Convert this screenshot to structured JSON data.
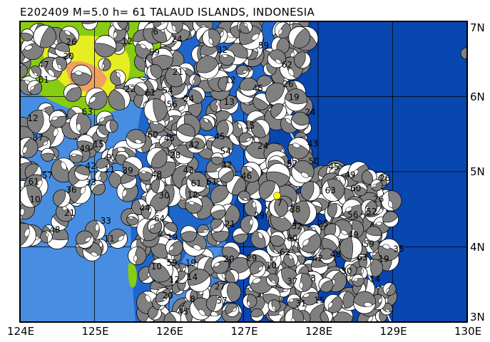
{
  "title": "E202409 M=5.0 h= 61 TALAUD ISLANDS, INDONESIA",
  "map": {
    "lon_range": [
      124,
      130
    ],
    "lat_range": [
      3,
      7
    ],
    "lon_ticks": [
      "124E",
      "125E",
      "126E",
      "127E",
      "128E",
      "129E",
      "130E"
    ],
    "lat_ticks": [
      "7N",
      "6N",
      "5N",
      "4N",
      "3N"
    ],
    "epicenter": {
      "lon": 127.45,
      "lat": 4.68,
      "color": "#ffff00"
    },
    "colors": {
      "deep_ocean": "#0846b0",
      "mid_ocean": "#1f66cc",
      "shallow_ocean": "#4f95e6",
      "land_low": "#88cc11",
      "land_mid": "#e6ee22",
      "land_high": "#f0a060",
      "beachball_compression": "#808080",
      "beachball_dilatation": "#ffffff",
      "trench": "#e8e8e8"
    },
    "icons": {
      "event": "focal-mechanism-beachball-icon",
      "epicenter": "star-epicenter-icon"
    }
  }
}
